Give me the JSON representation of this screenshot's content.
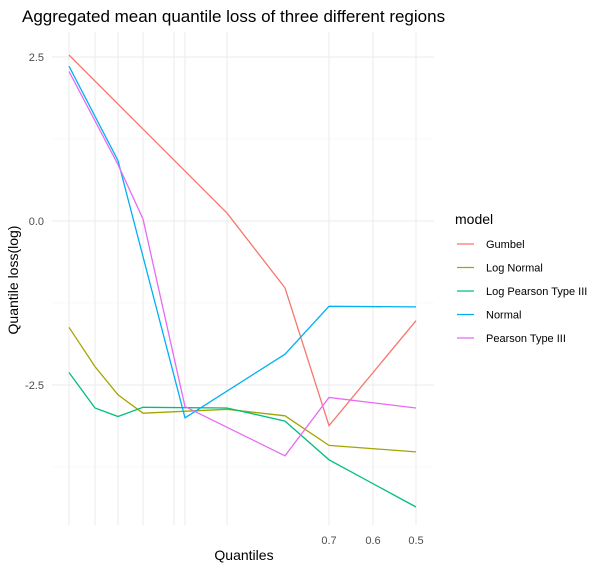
{
  "chart_data": {
    "type": "line",
    "title": "Aggregated mean quantile loss of three different regions",
    "xlabel": "Quantiles",
    "ylabel": "Quantile loss(log)",
    "x": [
      0.999,
      0.995,
      0.99,
      0.98,
      0.96,
      0.95,
      0.9,
      0.8,
      0.5
    ],
    "x_tick_labels": [
      "0.7",
      "0.6",
      "0.5"
    ],
    "x_tick_values": [
      0.7,
      0.6,
      0.5
    ],
    "x_minor_gridlines": [
      0.999,
      0.995,
      0.99,
      0.98,
      0.96,
      0.95,
      0.9,
      0.7,
      0.6,
      0.5
    ],
    "xlim": [
      0.999,
      0.5
    ],
    "y_tick_labels": [
      "2.5",
      "0.0",
      "-2.5"
    ],
    "y_tick_values": [
      2.5,
      0.0,
      -2.5
    ],
    "ylim": [
      -5.35,
      2.95
    ],
    "grid": true,
    "legend_title": "model",
    "legend_position": "right",
    "series": [
      {
        "name": "Gumbel",
        "color": "#F8766D",
        "points": [
          [
            0.999,
            2.53
          ],
          [
            0.9,
            0.12
          ],
          [
            0.8,
            -1.02
          ],
          [
            0.7,
            -3.12
          ],
          [
            0.5,
            -1.52
          ]
        ]
      },
      {
        "name": "Log Normal",
        "color": "#A3A500",
        "points": [
          [
            0.999,
            -1.62
          ],
          [
            0.995,
            -2.22
          ],
          [
            0.99,
            -2.65
          ],
          [
            0.98,
            -2.93
          ],
          [
            0.9,
            -2.87
          ],
          [
            0.8,
            -2.97
          ],
          [
            0.7,
            -3.42
          ],
          [
            0.5,
            -3.52
          ]
        ]
      },
      {
        "name": "Log Pearson Type III",
        "color": "#00BF7D",
        "points": [
          [
            0.999,
            -2.31
          ],
          [
            0.995,
            -2.85
          ],
          [
            0.99,
            -2.98
          ],
          [
            0.98,
            -2.84
          ],
          [
            0.9,
            -2.85
          ],
          [
            0.8,
            -3.05
          ],
          [
            0.7,
            -3.64
          ],
          [
            0.5,
            -4.36
          ]
        ]
      },
      {
        "name": "Normal",
        "color": "#00B0F6",
        "points": [
          [
            0.999,
            2.36
          ],
          [
            0.99,
            0.92
          ],
          [
            0.95,
            -3.0
          ],
          [
            0.8,
            -2.03
          ],
          [
            0.7,
            -1.3
          ],
          [
            0.5,
            -1.31
          ]
        ]
      },
      {
        "name": "Pearson Type III",
        "color": "#E76BF3",
        "points": [
          [
            0.999,
            2.28
          ],
          [
            0.99,
            0.86
          ],
          [
            0.98,
            0.03
          ],
          [
            0.95,
            -2.83
          ],
          [
            0.8,
            -3.58
          ],
          [
            0.7,
            -2.69
          ],
          [
            0.5,
            -2.85
          ]
        ]
      }
    ]
  }
}
